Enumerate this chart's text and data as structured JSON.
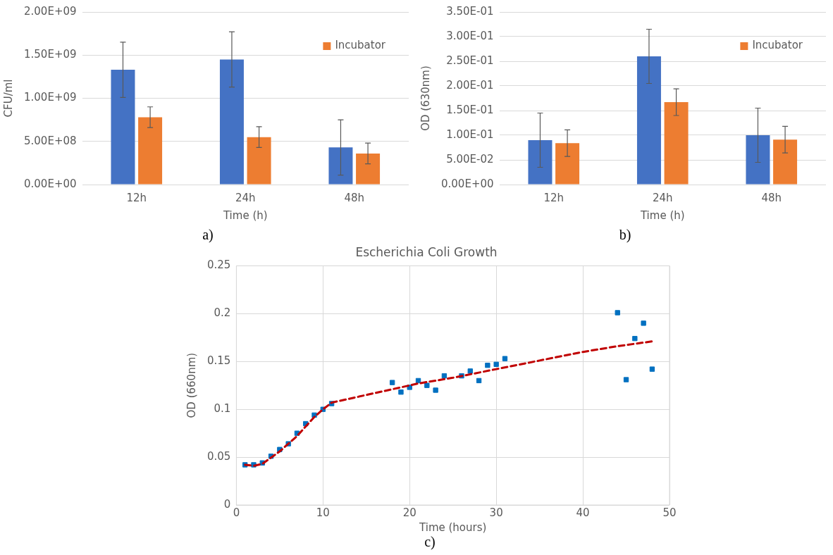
{
  "chart_data": [
    {
      "type": "bar",
      "xlabel": "Time (h)",
      "ylabel": "CFU/ml",
      "categories": [
        "12h",
        "24h",
        "48h"
      ],
      "series": [
        {
          "color": "#4472c4",
          "values": [
            1330000000,
            1450000000,
            430000000
          ],
          "errors": [
            320000000,
            320000000,
            320000000
          ]
        },
        {
          "name": "Incubator",
          "color": "#ed7d31",
          "values": [
            780000000,
            550000000,
            360000000
          ],
          "errors": [
            120000000,
            120000000,
            120000000
          ]
        }
      ],
      "ylim": [
        0,
        2000000000
      ],
      "yticks": [
        {
          "value": 0,
          "label": "0.00E+00"
        },
        {
          "value": 500000000,
          "label": "5.00E+08"
        },
        {
          "value": 1000000000,
          "label": "1.00E+09"
        },
        {
          "value": 1500000000,
          "label": "1.50E+09"
        },
        {
          "value": 2000000000,
          "label": "2.00E+09"
        }
      ],
      "grid": "y",
      "legend": "top right",
      "annotations": [
        "a)"
      ]
    },
    {
      "type": "bar",
      "xlabel": "Time (h)",
      "ylabel": "OD (630nm)",
      "categories": [
        "12h",
        "24h",
        "48h"
      ],
      "series": [
        {
          "color": "#4472c4",
          "values": [
            0.09,
            0.26,
            0.1
          ],
          "errors": [
            0.055,
            0.055,
            0.055
          ]
        },
        {
          "name": "Incubator",
          "color": "#ed7d31",
          "values": [
            0.084,
            0.167,
            0.091
          ],
          "errors": [
            0.027,
            0.027,
            0.027
          ]
        }
      ],
      "ylim": [
        0,
        0.35
      ],
      "yticks": [
        {
          "value": 0,
          "label": "0.00E+00"
        },
        {
          "value": 0.05,
          "label": "5.00E-02"
        },
        {
          "value": 0.1,
          "label": "1.00E-01"
        },
        {
          "value": 0.15,
          "label": "1.50E-01"
        },
        {
          "value": 0.2,
          "label": "2.00E-01"
        },
        {
          "value": 0.25,
          "label": "2.50E-01"
        },
        {
          "value": 0.3,
          "label": "3.00E-01"
        },
        {
          "value": 0.35,
          "label": "3.50E-01"
        }
      ],
      "grid": "y",
      "legend": "top right",
      "annotations": [
        "b)"
      ]
    },
    {
      "type": "scatter",
      "title": "Escherichia Coli Growth",
      "xlabel": "Time (hours)",
      "ylabel": "OD (660nm)",
      "marker": "square",
      "series": [
        {
          "color": "#0070c0",
          "x": [
            1,
            2,
            3,
            4,
            5,
            6,
            7,
            8,
            9,
            10,
            11,
            18,
            19,
            20,
            21,
            22,
            23,
            24,
            26,
            27,
            28,
            29,
            30,
            31,
            44,
            45,
            46,
            47,
            48
          ],
          "values": [
            0.042,
            0.042,
            0.044,
            0.051,
            0.058,
            0.064,
            0.075,
            0.085,
            0.094,
            0.1,
            0.106,
            0.128,
            0.118,
            0.123,
            0.13,
            0.125,
            0.12,
            0.135,
            0.135,
            0.14,
            0.13,
            0.146,
            0.147,
            0.153,
            0.201,
            0.131,
            0.174,
            0.19,
            0.142
          ]
        },
        {
          "type": "line",
          "color": "#c00000",
          "line_style": "dashed",
          "marker": "none",
          "x": [
            1,
            2,
            3,
            5,
            7,
            9,
            10,
            11,
            14,
            18,
            21,
            25,
            30,
            35,
            40,
            44,
            48
          ],
          "values": [
            0.042,
            0.041,
            0.043,
            0.056,
            0.072,
            0.092,
            0.1,
            0.107,
            0.113,
            0.121,
            0.127,
            0.133,
            0.142,
            0.151,
            0.16,
            0.166,
            0.171
          ]
        }
      ],
      "xlim": [
        0,
        50
      ],
      "xticks": [
        0,
        10,
        20,
        30,
        40,
        50
      ],
      "ylim": [
        0,
        0.25
      ],
      "yticks": [
        0,
        0.05,
        0.1,
        0.15,
        0.2,
        0.25
      ],
      "grid": true,
      "annotations": [
        "c)"
      ]
    }
  ]
}
